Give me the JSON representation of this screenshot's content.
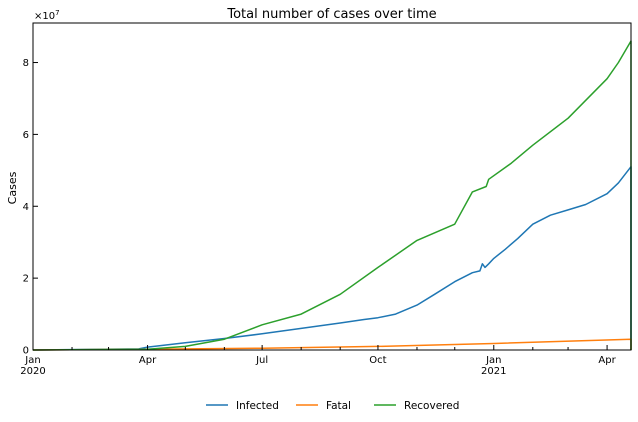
{
  "chart_data": {
    "type": "line",
    "title": "Total number of cases over time",
    "ylabel": "Cases",
    "xlabel": "",
    "y_multiplier_label": "×10^7",
    "y_multiplier_base": "×10",
    "y_multiplier_exp": "7",
    "y_scale": 10000000,
    "xlim": [
      "2020-01-01",
      "2021-04-20"
    ],
    "ylim": [
      0,
      9.1
    ],
    "grid": false,
    "legend_position": "bottom-center",
    "x_ticks": [
      {
        "date": "2020-01-01",
        "label": "Jan",
        "sublabel": "2020"
      },
      {
        "date": "2020-04-01",
        "label": "Apr",
        "sublabel": ""
      },
      {
        "date": "2020-07-01",
        "label": "Jul",
        "sublabel": ""
      },
      {
        "date": "2020-10-01",
        "label": "Oct",
        "sublabel": ""
      },
      {
        "date": "2021-01-01",
        "label": "Jan",
        "sublabel": "2021"
      },
      {
        "date": "2021-04-01",
        "label": "Apr",
        "sublabel": ""
      }
    ],
    "x_minor_ticks": [
      "2020-02-01",
      "2020-03-01",
      "2020-05-01",
      "2020-06-01",
      "2020-08-01",
      "2020-09-01",
      "2020-11-01",
      "2020-12-01",
      "2021-02-01",
      "2021-03-01"
    ],
    "y_ticks": [
      0,
      2,
      4,
      6,
      8
    ],
    "y_tick_labels": [
      "0",
      "2",
      "4",
      "6",
      "8"
    ],
    "series": [
      {
        "name": "Infected",
        "color": "#1f77b4",
        "points": [
          [
            "2020-01-01",
            0
          ],
          [
            "2020-03-25",
            0.03
          ],
          [
            "2020-04-01",
            0.08
          ],
          [
            "2020-05-01",
            0.2
          ],
          [
            "2020-06-01",
            0.32
          ],
          [
            "2020-07-01",
            0.45
          ],
          [
            "2020-08-01",
            0.6
          ],
          [
            "2020-09-01",
            0.75
          ],
          [
            "2020-09-20",
            0.85
          ],
          [
            "2020-10-01",
            0.9
          ],
          [
            "2020-10-15",
            1.0
          ],
          [
            "2020-11-01",
            1.25
          ],
          [
            "2020-11-15",
            1.55
          ],
          [
            "2020-12-01",
            1.9
          ],
          [
            "2020-12-15",
            2.15
          ],
          [
            "2020-12-21",
            2.2
          ],
          [
            "2020-12-23",
            2.4
          ],
          [
            "2020-12-25",
            2.3
          ],
          [
            "2020-12-28",
            2.4
          ],
          [
            "2021-01-01",
            2.55
          ],
          [
            "2021-01-10",
            2.8
          ],
          [
            "2021-01-20",
            3.1
          ],
          [
            "2021-02-01",
            3.5
          ],
          [
            "2021-02-15",
            3.75
          ],
          [
            "2021-03-01",
            3.9
          ],
          [
            "2021-03-15",
            4.05
          ],
          [
            "2021-04-01",
            4.35
          ],
          [
            "2021-04-10",
            4.65
          ],
          [
            "2021-04-20",
            5.1
          ],
          [
            "2021-04-20",
            0
          ]
        ]
      },
      {
        "name": "Fatal",
        "color": "#ff7f0e",
        "points": [
          [
            "2020-01-01",
            0
          ],
          [
            "2020-04-01",
            0.02
          ],
          [
            "2020-07-01",
            0.05
          ],
          [
            "2020-10-01",
            0.1
          ],
          [
            "2021-01-01",
            0.18
          ],
          [
            "2021-04-20",
            0.3
          ],
          [
            "2021-04-20",
            0
          ]
        ]
      },
      {
        "name": "Recovered",
        "color": "#2ca02c",
        "points": [
          [
            "2020-01-01",
            0
          ],
          [
            "2020-04-01",
            0.02
          ],
          [
            "2020-05-01",
            0.1
          ],
          [
            "2020-06-01",
            0.3
          ],
          [
            "2020-07-01",
            0.7
          ],
          [
            "2020-08-01",
            1.0
          ],
          [
            "2020-09-01",
            1.55
          ],
          [
            "2020-10-01",
            2.3
          ],
          [
            "2020-11-01",
            3.05
          ],
          [
            "2020-12-01",
            3.5
          ],
          [
            "2020-12-15",
            4.4
          ],
          [
            "2020-12-26",
            4.55
          ],
          [
            "2020-12-28",
            4.75
          ],
          [
            "2021-01-15",
            5.2
          ],
          [
            "2021-02-01",
            5.7
          ],
          [
            "2021-03-01",
            6.45
          ],
          [
            "2021-04-01",
            7.55
          ],
          [
            "2021-04-10",
            8.0
          ],
          [
            "2021-04-20",
            8.6
          ],
          [
            "2021-04-20",
            0
          ]
        ]
      }
    ]
  }
}
